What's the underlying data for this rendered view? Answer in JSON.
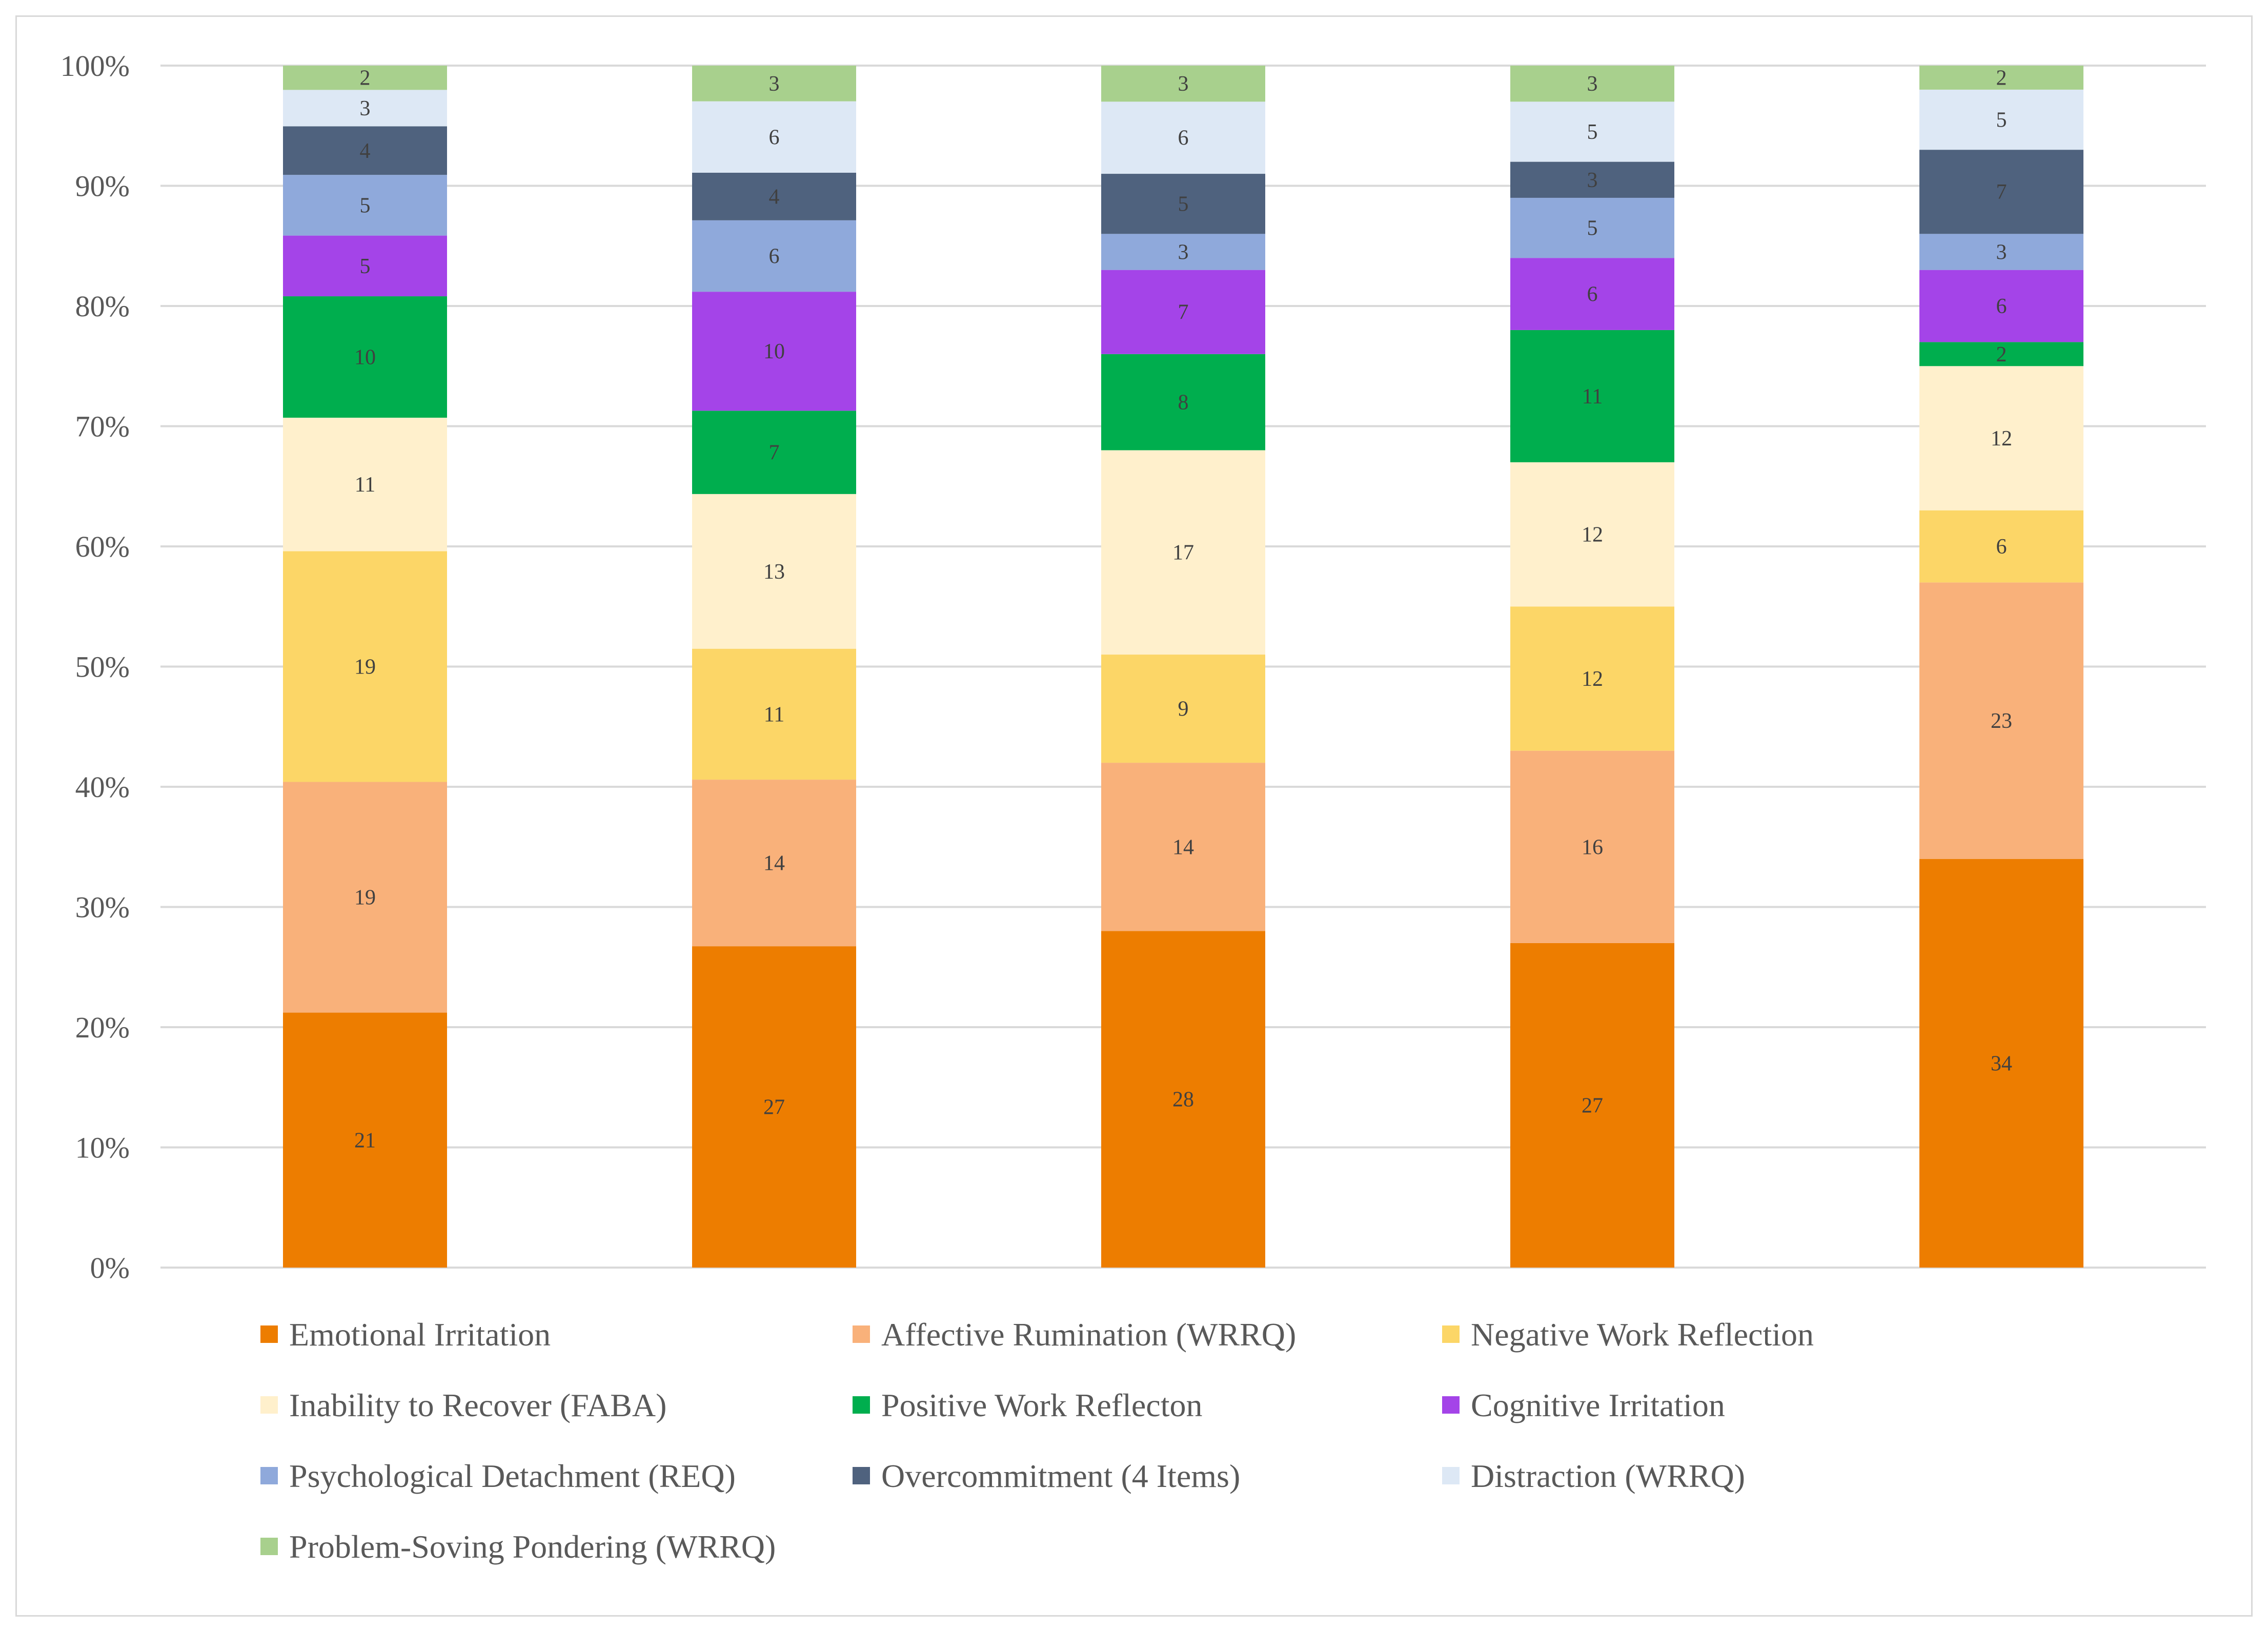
{
  "chart_data": {
    "type": "bar",
    "stacked": true,
    "percent": true,
    "categories": [
      "",
      "",
      "",
      "",
      ""
    ],
    "ylim": [
      0,
      100
    ],
    "yticks": [
      "0%",
      "10%",
      "20%",
      "30%",
      "40%",
      "50%",
      "60%",
      "70%",
      "80%",
      "90%",
      "100%"
    ],
    "grid": true,
    "legend_position": "bottom",
    "series": [
      {
        "name": "Emotional Irritation",
        "color": "#ED7D00",
        "values": [
          21,
          27,
          28,
          27,
          34
        ]
      },
      {
        "name": "Affective Rumination (WRRQ)",
        "color": "#F9B17A",
        "values": [
          19,
          14,
          14,
          16,
          23
        ]
      },
      {
        "name": "Negative Work Reflection",
        "color": "#FCD667",
        "values": [
          19,
          11,
          9,
          12,
          6
        ]
      },
      {
        "name": "Inability to Recover (FABA)",
        "color": "#FFF0CC",
        "values": [
          11,
          13,
          17,
          12,
          12
        ]
      },
      {
        "name": "Positive Work Reflecton",
        "color": "#00AE4E",
        "values": [
          10,
          7,
          8,
          11,
          2
        ]
      },
      {
        "name": "Cognitive Irritation",
        "color": "#A444E8",
        "values": [
          5,
          10,
          7,
          6,
          6
        ]
      },
      {
        "name": "Psychological Detachment (REQ)",
        "color": "#8FA9DB",
        "values": [
          5,
          6,
          3,
          5,
          3
        ]
      },
      {
        "name": "Overcommitment (4 Items)",
        "color": "#4F627E",
        "values": [
          4,
          4,
          5,
          3,
          7
        ]
      },
      {
        "name": "Distraction (WRRQ)",
        "color": "#DDE8F5",
        "values": [
          3,
          6,
          6,
          5,
          5
        ]
      },
      {
        "name": "Problem-Soving Pondering (WRRQ)",
        "color": "#A8D08D",
        "values": [
          2,
          3,
          3,
          3,
          2
        ]
      }
    ]
  },
  "colors": {
    "gridline": "#d9d9d9",
    "axis_text": "#595959",
    "label_text": "#404040"
  }
}
